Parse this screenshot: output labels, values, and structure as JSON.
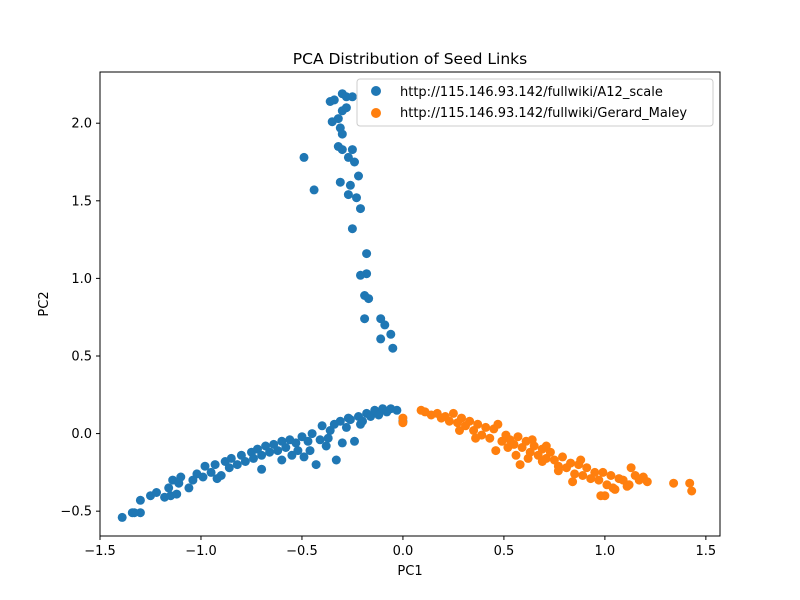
{
  "chart_data": {
    "type": "scatter",
    "title": "PCA Distribution of Seed Links",
    "xlabel": "PC1",
    "ylabel": "PC2",
    "xlim": [
      -1.5,
      1.57
    ],
    "ylim": [
      -0.66,
      2.33
    ],
    "xticks": [
      "−1.5",
      "−1.0",
      "−0.5",
      "0.0",
      "0.5",
      "1.0",
      "1.5"
    ],
    "xtick_values": [
      -1.5,
      -1.0,
      -0.5,
      0.0,
      0.5,
      1.0,
      1.5
    ],
    "yticks": [
      "−0.5",
      "0.0",
      "0.5",
      "1.0",
      "1.5",
      "2.0"
    ],
    "ytick_values": [
      -0.5,
      0.0,
      0.5,
      1.0,
      1.5,
      2.0
    ],
    "grid": false,
    "legend_position": "top-right",
    "series": [
      {
        "name": "http://115.146.93.142/fullwiki/A12_scale",
        "color": "#1f77b4",
        "points": [
          [
            -0.3,
            2.19
          ],
          [
            -0.28,
            2.17
          ],
          [
            -0.25,
            2.17
          ],
          [
            -0.36,
            2.14
          ],
          [
            -0.34,
            2.15
          ],
          [
            -0.3,
            2.08
          ],
          [
            -0.28,
            2.1
          ],
          [
            -0.32,
            2.03
          ],
          [
            -0.35,
            2.01
          ],
          [
            -0.31,
            1.97
          ],
          [
            -0.3,
            1.93
          ],
          [
            -0.32,
            1.85
          ],
          [
            -0.3,
            1.83
          ],
          [
            -0.25,
            1.83
          ],
          [
            -0.27,
            1.78
          ],
          [
            -0.49,
            1.78
          ],
          [
            -0.24,
            1.75
          ],
          [
            -0.22,
            1.66
          ],
          [
            -0.31,
            1.62
          ],
          [
            -0.26,
            1.6
          ],
          [
            -0.44,
            1.57
          ],
          [
            -0.27,
            1.54
          ],
          [
            -0.23,
            1.52
          ],
          [
            -0.21,
            1.45
          ],
          [
            -0.25,
            1.32
          ],
          [
            -0.18,
            1.16
          ],
          [
            -0.18,
            1.03
          ],
          [
            -0.21,
            1.02
          ],
          [
            -0.17,
            0.87
          ],
          [
            -0.19,
            0.89
          ],
          [
            -0.19,
            0.74
          ],
          [
            -0.11,
            0.74
          ],
          [
            -0.09,
            0.7
          ],
          [
            -0.06,
            0.64
          ],
          [
            -0.11,
            0.61
          ],
          [
            -0.05,
            0.55
          ],
          [
            -1.39,
            -0.54
          ],
          [
            -1.34,
            -0.51
          ],
          [
            -1.3,
            -0.51
          ],
          [
            -1.33,
            -0.51
          ],
          [
            -1.3,
            -0.43
          ],
          [
            -1.25,
            -0.4
          ],
          [
            -1.22,
            -0.38
          ],
          [
            -1.18,
            -0.41
          ],
          [
            -1.15,
            -0.4
          ],
          [
            -1.16,
            -0.35
          ],
          [
            -1.12,
            -0.39
          ],
          [
            -1.14,
            -0.3
          ],
          [
            -1.11,
            -0.32
          ],
          [
            -1.1,
            -0.28
          ],
          [
            -1.06,
            -0.35
          ],
          [
            -1.04,
            -0.3
          ],
          [
            -1.02,
            -0.26
          ],
          [
            -0.99,
            -0.28
          ],
          [
            -0.98,
            -0.21
          ],
          [
            -0.95,
            -0.25
          ],
          [
            -0.93,
            -0.2
          ],
          [
            -0.9,
            -0.27
          ],
          [
            -0.88,
            -0.18
          ],
          [
            -0.86,
            -0.22
          ],
          [
            -0.85,
            -0.16
          ],
          [
            -0.82,
            -0.2
          ],
          [
            -0.8,
            -0.14
          ],
          [
            -0.78,
            -0.18
          ],
          [
            -0.75,
            -0.12
          ],
          [
            -0.74,
            -0.16
          ],
          [
            -0.72,
            -0.1
          ],
          [
            -0.7,
            -0.14
          ],
          [
            -0.68,
            -0.08
          ],
          [
            -0.66,
            -0.12
          ],
          [
            -0.64,
            -0.07
          ],
          [
            -0.62,
            -0.11
          ],
          [
            -0.6,
            -0.05
          ],
          [
            -0.58,
            -0.09
          ],
          [
            -0.56,
            -0.04
          ],
          [
            -0.55,
            -0.14
          ],
          [
            -0.53,
            -0.06
          ],
          [
            -0.5,
            -0.02
          ],
          [
            -0.49,
            -0.15
          ],
          [
            -0.47,
            -0.05
          ],
          [
            -0.45,
            0.0
          ],
          [
            -0.43,
            -0.2
          ],
          [
            -0.41,
            -0.04
          ],
          [
            -0.4,
            0.05
          ],
          [
            -0.38,
            -0.08
          ],
          [
            -0.36,
            0.02
          ],
          [
            -0.34,
            0.06
          ],
          [
            -0.33,
            -0.17
          ],
          [
            -0.31,
            0.08
          ],
          [
            -0.3,
            -0.06
          ],
          [
            -0.28,
            0.04
          ],
          [
            -0.26,
            0.09
          ],
          [
            -0.24,
            -0.05
          ],
          [
            -0.22,
            0.11
          ],
          [
            -0.2,
            0.08
          ],
          [
            -0.18,
            0.13
          ],
          [
            -0.16,
            0.11
          ],
          [
            -0.14,
            0.15
          ],
          [
            -0.12,
            0.12
          ],
          [
            -0.1,
            0.16
          ],
          [
            -0.08,
            0.14
          ],
          [
            -0.06,
            0.16
          ],
          [
            -0.03,
            0.15
          ],
          [
            0.0,
            0.08
          ],
          [
            -0.92,
            -0.29
          ],
          [
            -0.7,
            -0.23
          ],
          [
            -0.6,
            -0.17
          ],
          [
            -0.52,
            -0.11
          ],
          [
            -0.46,
            -0.11
          ],
          [
            -0.37,
            -0.03
          ],
          [
            -0.27,
            0.1
          ],
          [
            -0.21,
            0.06
          ]
        ]
      },
      {
        "name": "http://115.146.93.142/fullwiki/Gerard_Maley",
        "color": "#ff7f0e",
        "points": [
          [
            0.0,
            0.1
          ],
          [
            0.0,
            0.07
          ],
          [
            0.09,
            0.15
          ],
          [
            0.11,
            0.14
          ],
          [
            0.14,
            0.12
          ],
          [
            0.17,
            0.13
          ],
          [
            0.19,
            0.1
          ],
          [
            0.21,
            0.11
          ],
          [
            0.23,
            0.08
          ],
          [
            0.25,
            0.13
          ],
          [
            0.27,
            0.07
          ],
          [
            0.29,
            0.1
          ],
          [
            0.31,
            0.05
          ],
          [
            0.33,
            0.08
          ],
          [
            0.35,
            0.02
          ],
          [
            0.37,
            0.06
          ],
          [
            0.39,
            -0.01
          ],
          [
            0.41,
            0.04
          ],
          [
            0.43,
            -0.03
          ],
          [
            0.45,
            0.03
          ],
          [
            0.47,
            0.06
          ],
          [
            0.49,
            -0.05
          ],
          [
            0.51,
            -0.01
          ],
          [
            0.53,
            -0.04
          ],
          [
            0.55,
            -0.07
          ],
          [
            0.57,
            -0.02
          ],
          [
            0.59,
            -0.09
          ],
          [
            0.61,
            -0.05
          ],
          [
            0.63,
            -0.12
          ],
          [
            0.65,
            -0.08
          ],
          [
            0.67,
            -0.14
          ],
          [
            0.69,
            -0.1
          ],
          [
            0.71,
            -0.16
          ],
          [
            0.73,
            -0.12
          ],
          [
            0.75,
            -0.17
          ],
          [
            0.77,
            -0.21
          ],
          [
            0.79,
            -0.15
          ],
          [
            0.81,
            -0.22
          ],
          [
            0.83,
            -0.19
          ],
          [
            0.85,
            -0.26
          ],
          [
            0.87,
            -0.2
          ],
          [
            0.89,
            -0.27
          ],
          [
            0.91,
            -0.22
          ],
          [
            0.93,
            -0.29
          ],
          [
            0.95,
            -0.25
          ],
          [
            0.97,
            -0.3
          ],
          [
            0.99,
            -0.25
          ],
          [
            1.01,
            -0.33
          ],
          [
            1.03,
            -0.27
          ],
          [
            1.05,
            -0.36
          ],
          [
            1.07,
            -0.29
          ],
          [
            1.09,
            -0.3
          ],
          [
            1.11,
            -0.34
          ],
          [
            1.13,
            -0.22
          ],
          [
            1.15,
            -0.27
          ],
          [
            1.17,
            -0.3
          ],
          [
            1.19,
            -0.28
          ],
          [
            1.21,
            -0.31
          ],
          [
            1.34,
            -0.32
          ],
          [
            1.42,
            -0.32
          ],
          [
            1.43,
            -0.37
          ],
          [
            0.58,
            -0.2
          ],
          [
            0.71,
            -0.08
          ],
          [
            0.77,
            -0.24
          ],
          [
            0.84,
            -0.31
          ],
          [
            0.98,
            -0.4
          ],
          [
            1.0,
            -0.4
          ],
          [
            1.04,
            -0.35
          ],
          [
            1.12,
            -0.33
          ],
          [
            0.46,
            -0.11
          ],
          [
            0.56,
            -0.14
          ],
          [
            0.36,
            -0.03
          ],
          [
            0.28,
            0.02
          ],
          [
            0.64,
            -0.04
          ],
          [
            0.52,
            -0.09
          ],
          [
            0.62,
            -0.16
          ],
          [
            0.69,
            -0.18
          ],
          [
            0.88,
            -0.17
          ]
        ]
      }
    ]
  }
}
